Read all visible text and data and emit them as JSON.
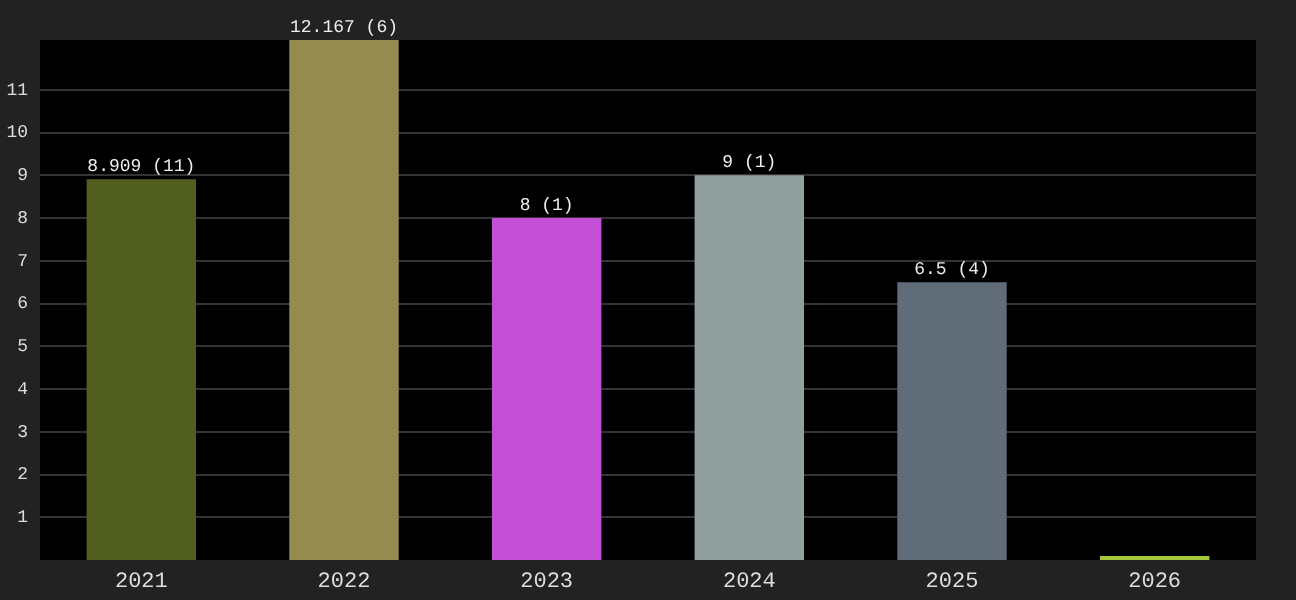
{
  "chart_data": {
    "type": "bar",
    "categories": [
      "2021",
      "2022",
      "2023",
      "2024",
      "2025",
      "2026"
    ],
    "values": [
      8.909,
      12.167,
      8,
      9,
      6.5,
      0
    ],
    "colors": [
      "#515e1f",
      "#958a50",
      "#c24fd6",
      "#91a09e",
      "#606c78",
      "#a4c639"
    ],
    "value_labels": [
      "8.909 (11)",
      "12.167 (6)",
      "8 (1)",
      "9 (1)",
      "6.5 (4)",
      null
    ],
    "ylim": [
      0,
      12.167
    ],
    "yticks": [
      1,
      2,
      3,
      4,
      5,
      6,
      7,
      8,
      9,
      10,
      11
    ],
    "grid": "y",
    "legend": false
  }
}
